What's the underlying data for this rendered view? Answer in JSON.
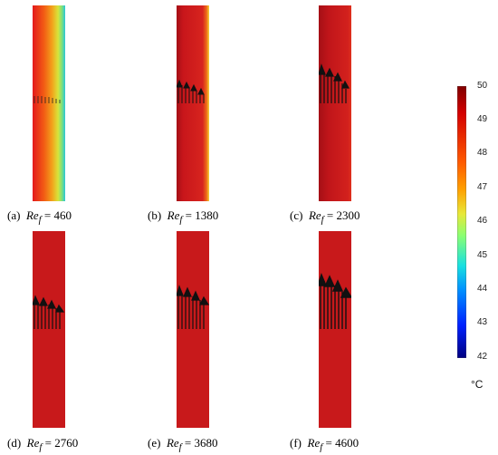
{
  "panels": [
    {
      "tag": "(a)",
      "re_label": "Re",
      "re_sub": "f",
      "eq": " = 460"
    },
    {
      "tag": "(b)",
      "re_label": "Re",
      "re_sub": "f",
      "eq": " = 1380"
    },
    {
      "tag": "(c)",
      "re_label": "Re",
      "re_sub": "f",
      "eq": " = 2300"
    },
    {
      "tag": "(d)",
      "re_label": "Re",
      "re_sub": "f",
      "eq": " = 2760"
    },
    {
      "tag": "(e)",
      "re_label": "Re",
      "re_sub": "f",
      "eq": " = 3680"
    },
    {
      "tag": "(f)",
      "re_label": "Re",
      "re_sub": "f",
      "eq": " = 4600"
    }
  ],
  "colorbar": {
    "ticks": [
      "50",
      "49",
      "48",
      "47",
      "46",
      "45",
      "44",
      "43",
      "42"
    ],
    "unit": "°C",
    "min": 42,
    "max": 50
  }
}
